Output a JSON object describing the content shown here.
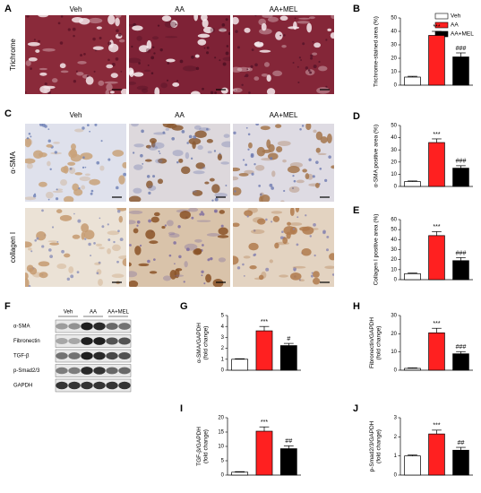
{
  "legend": {
    "names": [
      "Veh",
      "AA",
      "AA+MEL"
    ],
    "colors": [
      "#ffffff",
      "#ff2020",
      "#000000"
    ]
  },
  "histology": [
    {
      "panel": "A",
      "columns": [
        "Veh",
        "AA",
        "AA+MEL"
      ],
      "rows": [
        "Trichrome"
      ]
    },
    {
      "panel": "C",
      "columns": [
        "Veh",
        "AA",
        "AA+MEL"
      ],
      "rows": [
        "α-SMA",
        "collagen I"
      ]
    }
  ],
  "western_blot": {
    "panel": "F",
    "columns": [
      "Veh",
      "AA",
      "AA+MEL"
    ],
    "rows": [
      "α-SMA",
      "Fibronectin",
      "TGF-β",
      "p-Smad2/3",
      "GAPDH"
    ]
  },
  "chart_data": [
    {
      "type": "bar",
      "panel": "B",
      "y_label": [
        "Trichrome-stained area (%)"
      ],
      "values": [
        6,
        37,
        21
      ],
      "errors": [
        0.6,
        3,
        3
      ],
      "annotations": [
        null,
        "***",
        "###"
      ],
      "ylim": [
        0,
        50
      ],
      "yticks": [
        0,
        10,
        20,
        30,
        40,
        50
      ]
    },
    {
      "type": "bar",
      "panel": "D",
      "y_label": [
        "α-SMA positive area (%)"
      ],
      "values": [
        4,
        36,
        15
      ],
      "errors": [
        0.5,
        3,
        2
      ],
      "annotations": [
        null,
        "***",
        "###"
      ],
      "ylim": [
        0,
        50
      ],
      "yticks": [
        0,
        10,
        20,
        30,
        40,
        50
      ]
    },
    {
      "type": "bar",
      "panel": "E",
      "y_label": [
        "Collagen I positive area (%)"
      ],
      "values": [
        6,
        44,
        19
      ],
      "errors": [
        0.6,
        4,
        3
      ],
      "annotations": [
        null,
        "***",
        "###"
      ],
      "ylim": [
        0,
        60
      ],
      "yticks": [
        0,
        10,
        20,
        30,
        40,
        50,
        60
      ]
    },
    {
      "type": "bar",
      "panel": "G",
      "y_label": [
        "α-SMA/GAPDH",
        "(fold change)"
      ],
      "values": [
        1,
        3.6,
        2.25
      ],
      "errors": [
        0.05,
        0.4,
        0.2
      ],
      "annotations": [
        null,
        "***",
        "#"
      ],
      "ylim": [
        0,
        5
      ],
      "yticks": [
        0,
        1,
        2,
        3,
        4,
        5
      ]
    },
    {
      "type": "bar",
      "panel": "H",
      "y_label": [
        "Fibronectin/GAPDH",
        "(fold change)"
      ],
      "values": [
        1,
        20.5,
        9
      ],
      "errors": [
        0.3,
        2.5,
        1.2
      ],
      "annotations": [
        null,
        "***",
        "###"
      ],
      "ylim": [
        0,
        30
      ],
      "yticks": [
        0,
        10,
        20,
        30
      ]
    },
    {
      "type": "bar",
      "panel": "I",
      "y_label": [
        "TGF-β/GAPDH",
        "(fold change)"
      ],
      "values": [
        1,
        15.3,
        9.2
      ],
      "errors": [
        0.2,
        1.5,
        1
      ],
      "annotations": [
        null,
        "***",
        "##"
      ],
      "ylim": [
        0,
        20
      ],
      "yticks": [
        0,
        5,
        10,
        15,
        20
      ]
    },
    {
      "type": "bar",
      "panel": "J",
      "y_label": [
        "p-Smad2/3/GAPDH",
        "(fold change)"
      ],
      "values": [
        1,
        2.15,
        1.3
      ],
      "errors": [
        0.05,
        0.2,
        0.15
      ],
      "annotations": [
        null,
        "***",
        "##"
      ],
      "ylim": [
        0,
        3
      ],
      "yticks": [
        0,
        1,
        2,
        3
      ]
    }
  ]
}
